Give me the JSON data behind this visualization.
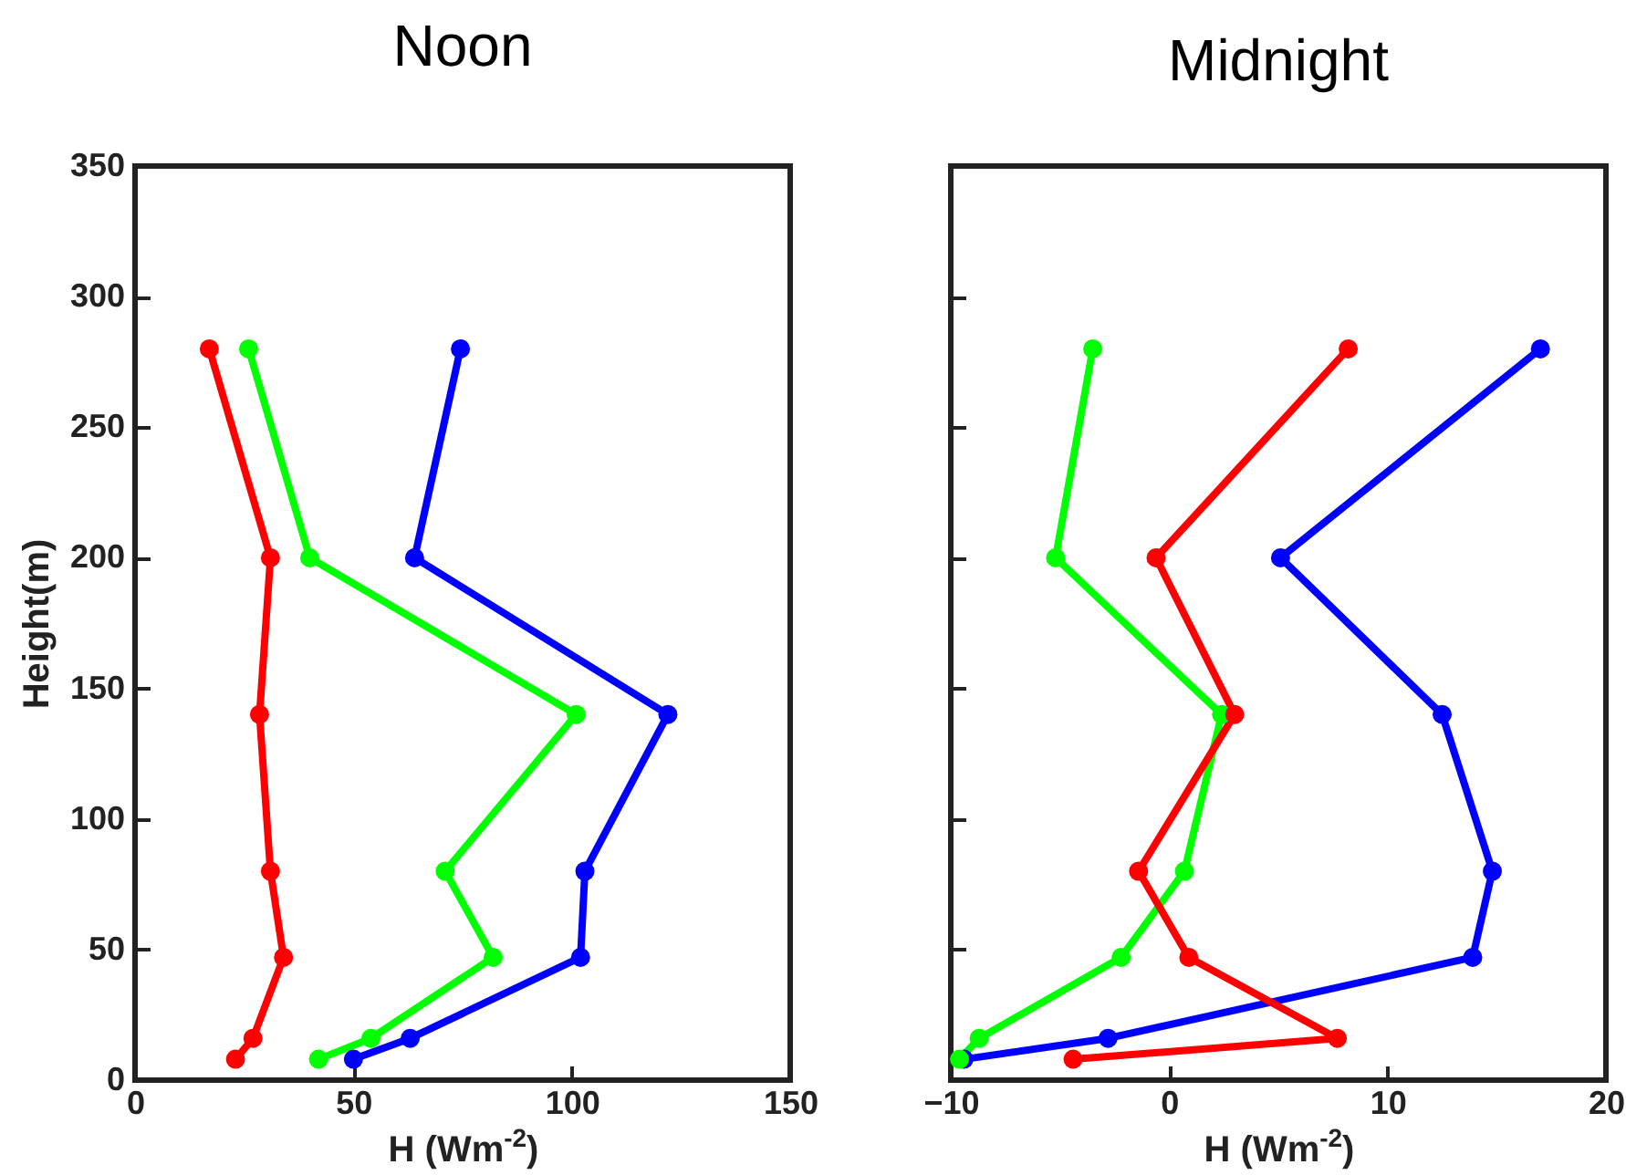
{
  "chart_data": [
    {
      "type": "line",
      "title": "Noon",
      "xlabel": "H (Wm$^{-2}$)",
      "ylabel": "Height(m)",
      "xlim": [
        0,
        150
      ],
      "xticks": [
        0,
        50,
        100,
        150
      ],
      "ylim": [
        0,
        350
      ],
      "yticks": [
        0,
        50,
        100,
        150,
        200,
        250,
        300,
        350
      ],
      "marker": "circle",
      "grid": false,
      "legend": false,
      "series": [
        {
          "color": "#0000ff",
          "x": [
            50,
            63,
            102,
            103,
            122,
            64,
            74.5
          ],
          "values": [
            8,
            16,
            47,
            80,
            140,
            200,
            280
          ]
        },
        {
          "color": "#00ff00",
          "x": [
            42,
            54,
            82,
            71,
            101,
            40,
            26
          ],
          "values": [
            8,
            16,
            47,
            80,
            140,
            200,
            280
          ]
        },
        {
          "color": "#ff0000",
          "x": [
            23,
            27,
            34,
            31,
            28.5,
            31,
            17
          ],
          "values": [
            8,
            16,
            47,
            80,
            140,
            200,
            280
          ]
        }
      ]
    },
    {
      "type": "line",
      "title": "Midnight",
      "xlabel": "H (Wm$^{-2}$)",
      "xlim": [
        -10,
        20
      ],
      "xticks": [
        -10,
        0,
        10,
        20
      ],
      "ylim": [
        0,
        350
      ],
      "yticks": [
        0,
        50,
        100,
        150,
        200,
        250,
        300,
        350
      ],
      "tick_labels": "x",
      "marker": "circle",
      "grid": false,
      "legend": false,
      "series": [
        {
          "color": "#0000ff",
          "x": [
            -9.4,
            -2.8,
            13.9,
            14.8,
            12.5,
            5.1,
            17
          ],
          "values": [
            8,
            16,
            47,
            80,
            140,
            200,
            280
          ]
        },
        {
          "color": "#00ff00",
          "x": [
            -9.6,
            -8.7,
            -2.2,
            0.7,
            2.4,
            -5.2,
            -3.5
          ],
          "values": [
            8,
            16,
            47,
            80,
            140,
            200,
            280
          ]
        },
        {
          "color": "#ff0000",
          "x": [
            -4.4,
            7.7,
            0.9,
            -1.4,
            3.0,
            -0.6,
            8.2
          ],
          "values": [
            8,
            16,
            47,
            80,
            140,
            200,
            280
          ]
        }
      ]
    }
  ]
}
